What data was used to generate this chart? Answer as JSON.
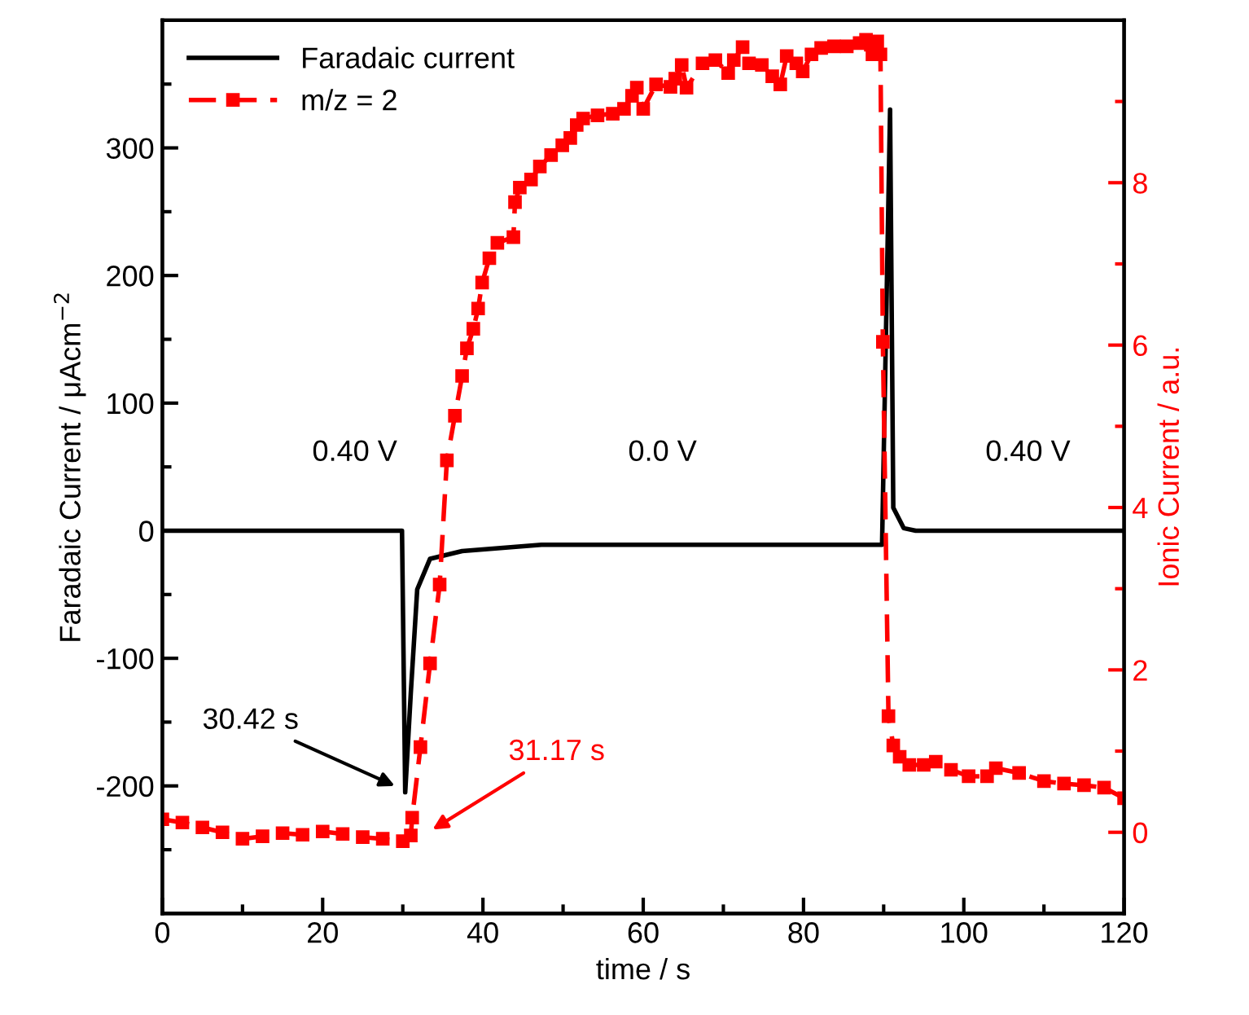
{
  "chart_data": {
    "type": "line",
    "xlabel": "time / s",
    "ylabel": "Faradaic Current / μAcm$^{−2}$",
    "y2label": "Ionic Current / a.u.",
    "xlim": [
      0,
      120
    ],
    "ylim": [
      -300,
      400
    ],
    "y2lim": [
      -1,
      10
    ],
    "xticks": [
      0,
      {
        "value": 10,
        "label": null
      },
      20,
      {
        "value": 30,
        "label": null
      },
      40,
      {
        "value": 50,
        "label": null
      },
      60,
      {
        "value": 70,
        "label": null
      },
      80,
      {
        "value": 90,
        "label": null
      },
      100,
      {
        "value": 110,
        "label": null
      },
      120
    ],
    "yticks": [
      {
        "value": -250,
        "label": null
      },
      -200,
      {
        "value": -150,
        "label": null
      },
      -100,
      {
        "value": -50,
        "label": null
      },
      0,
      {
        "value": 50,
        "label": null
      },
      100,
      {
        "value": 150,
        "label": null
      },
      200,
      {
        "value": 250,
        "label": null
      },
      300,
      {
        "value": 350,
        "label": null
      }
    ],
    "y2ticks": [
      0,
      {
        "value": 1,
        "label": null
      },
      2,
      {
        "value": 3,
        "label": null
      },
      4,
      {
        "value": 5,
        "label": null
      },
      6,
      {
        "value": 7,
        "label": null
      },
      8,
      {
        "value": 9,
        "label": null
      }
    ],
    "legend": "top left",
    "grid": false,
    "series": [
      {
        "name": "Faradaic current",
        "color": "#000000",
        "marker": "none",
        "line_style": "solid",
        "x": [
          0,
          29.9,
          30.3,
          31,
          31.8,
          33.4,
          37.4,
          47.3,
          60,
          89.8,
          90.8,
          91.2,
          92.5,
          94,
          120
        ],
        "values": [
          0,
          0,
          -205,
          -127,
          -46,
          -22,
          -16,
          -11,
          -11,
          -11,
          330,
          18,
          2,
          0,
          0
        ]
      },
      {
        "name": "m/z = 2",
        "color": "#ff0000",
        "axis": "y2",
        "marker": "square",
        "line_style": "dashed",
        "x": [
          0,
          2.5,
          5,
          7.5,
          10,
          12.5,
          15,
          17.5,
          20,
          22.5,
          25,
          27.5,
          30,
          31,
          31.17,
          32.2,
          33.4,
          34.6,
          35.5,
          36.5,
          37.4,
          38,
          38.8,
          39.4,
          39.9,
          40.8,
          41.8,
          43.8,
          44,
          44.6,
          46,
          47.1,
          48.5,
          49.9,
          50.9,
          51.7,
          52.5,
          54.3,
          56.2,
          57.6,
          58.6,
          59.2,
          60,
          61.6,
          63.4,
          64,
          64.8,
          65.4,
          67.4,
          69,
          70.6,
          71.3,
          72.4,
          73.2,
          74.8,
          76.1,
          77.1,
          77.9,
          79.1,
          79.9,
          81,
          82.2,
          83.8,
          85.4,
          87,
          87.8,
          88.4,
          88.6,
          89.2,
          89.6,
          89.9,
          90.6,
          91.2,
          92,
          93.2,
          95,
          96.5,
          98.4,
          100.6,
          102.9,
          104,
          106.9,
          110,
          112.5,
          115,
          117.5,
          120
        ],
        "values": [
          0.16,
          0.12,
          0.06,
          0.0,
          -0.08,
          -0.05,
          -0.01,
          -0.03,
          0.01,
          -0.02,
          -0.06,
          -0.08,
          -0.11,
          -0.04,
          0.18,
          1.05,
          2.08,
          3.05,
          4.58,
          5.13,
          5.62,
          5.96,
          6.2,
          6.45,
          6.77,
          7.07,
          7.26,
          7.33,
          7.76,
          7.94,
          8.04,
          8.2,
          8.34,
          8.46,
          8.55,
          8.71,
          8.79,
          8.83,
          8.85,
          8.91,
          9.07,
          9.17,
          8.91,
          9.21,
          9.18,
          9.28,
          9.45,
          9.17,
          9.47,
          9.51,
          9.35,
          9.51,
          9.67,
          9.47,
          9.45,
          9.31,
          9.21,
          9.56,
          9.47,
          9.37,
          9.58,
          9.66,
          9.68,
          9.68,
          9.72,
          9.76,
          9.7,
          9.58,
          9.74,
          9.58,
          6.04,
          1.43,
          1.07,
          0.93,
          0.83,
          0.83,
          0.87,
          0.77,
          0.69,
          0.69,
          0.79,
          0.73,
          0.63,
          0.6,
          0.58,
          0.55,
          0.42
        ]
      }
    ],
    "annotations": [
      "0.40 V",
      "0.0 V",
      "0.40 V",
      {
        "text": "30.42 s",
        "x": 29,
        "y": -200
      },
      "31.17 s"
    ]
  }
}
